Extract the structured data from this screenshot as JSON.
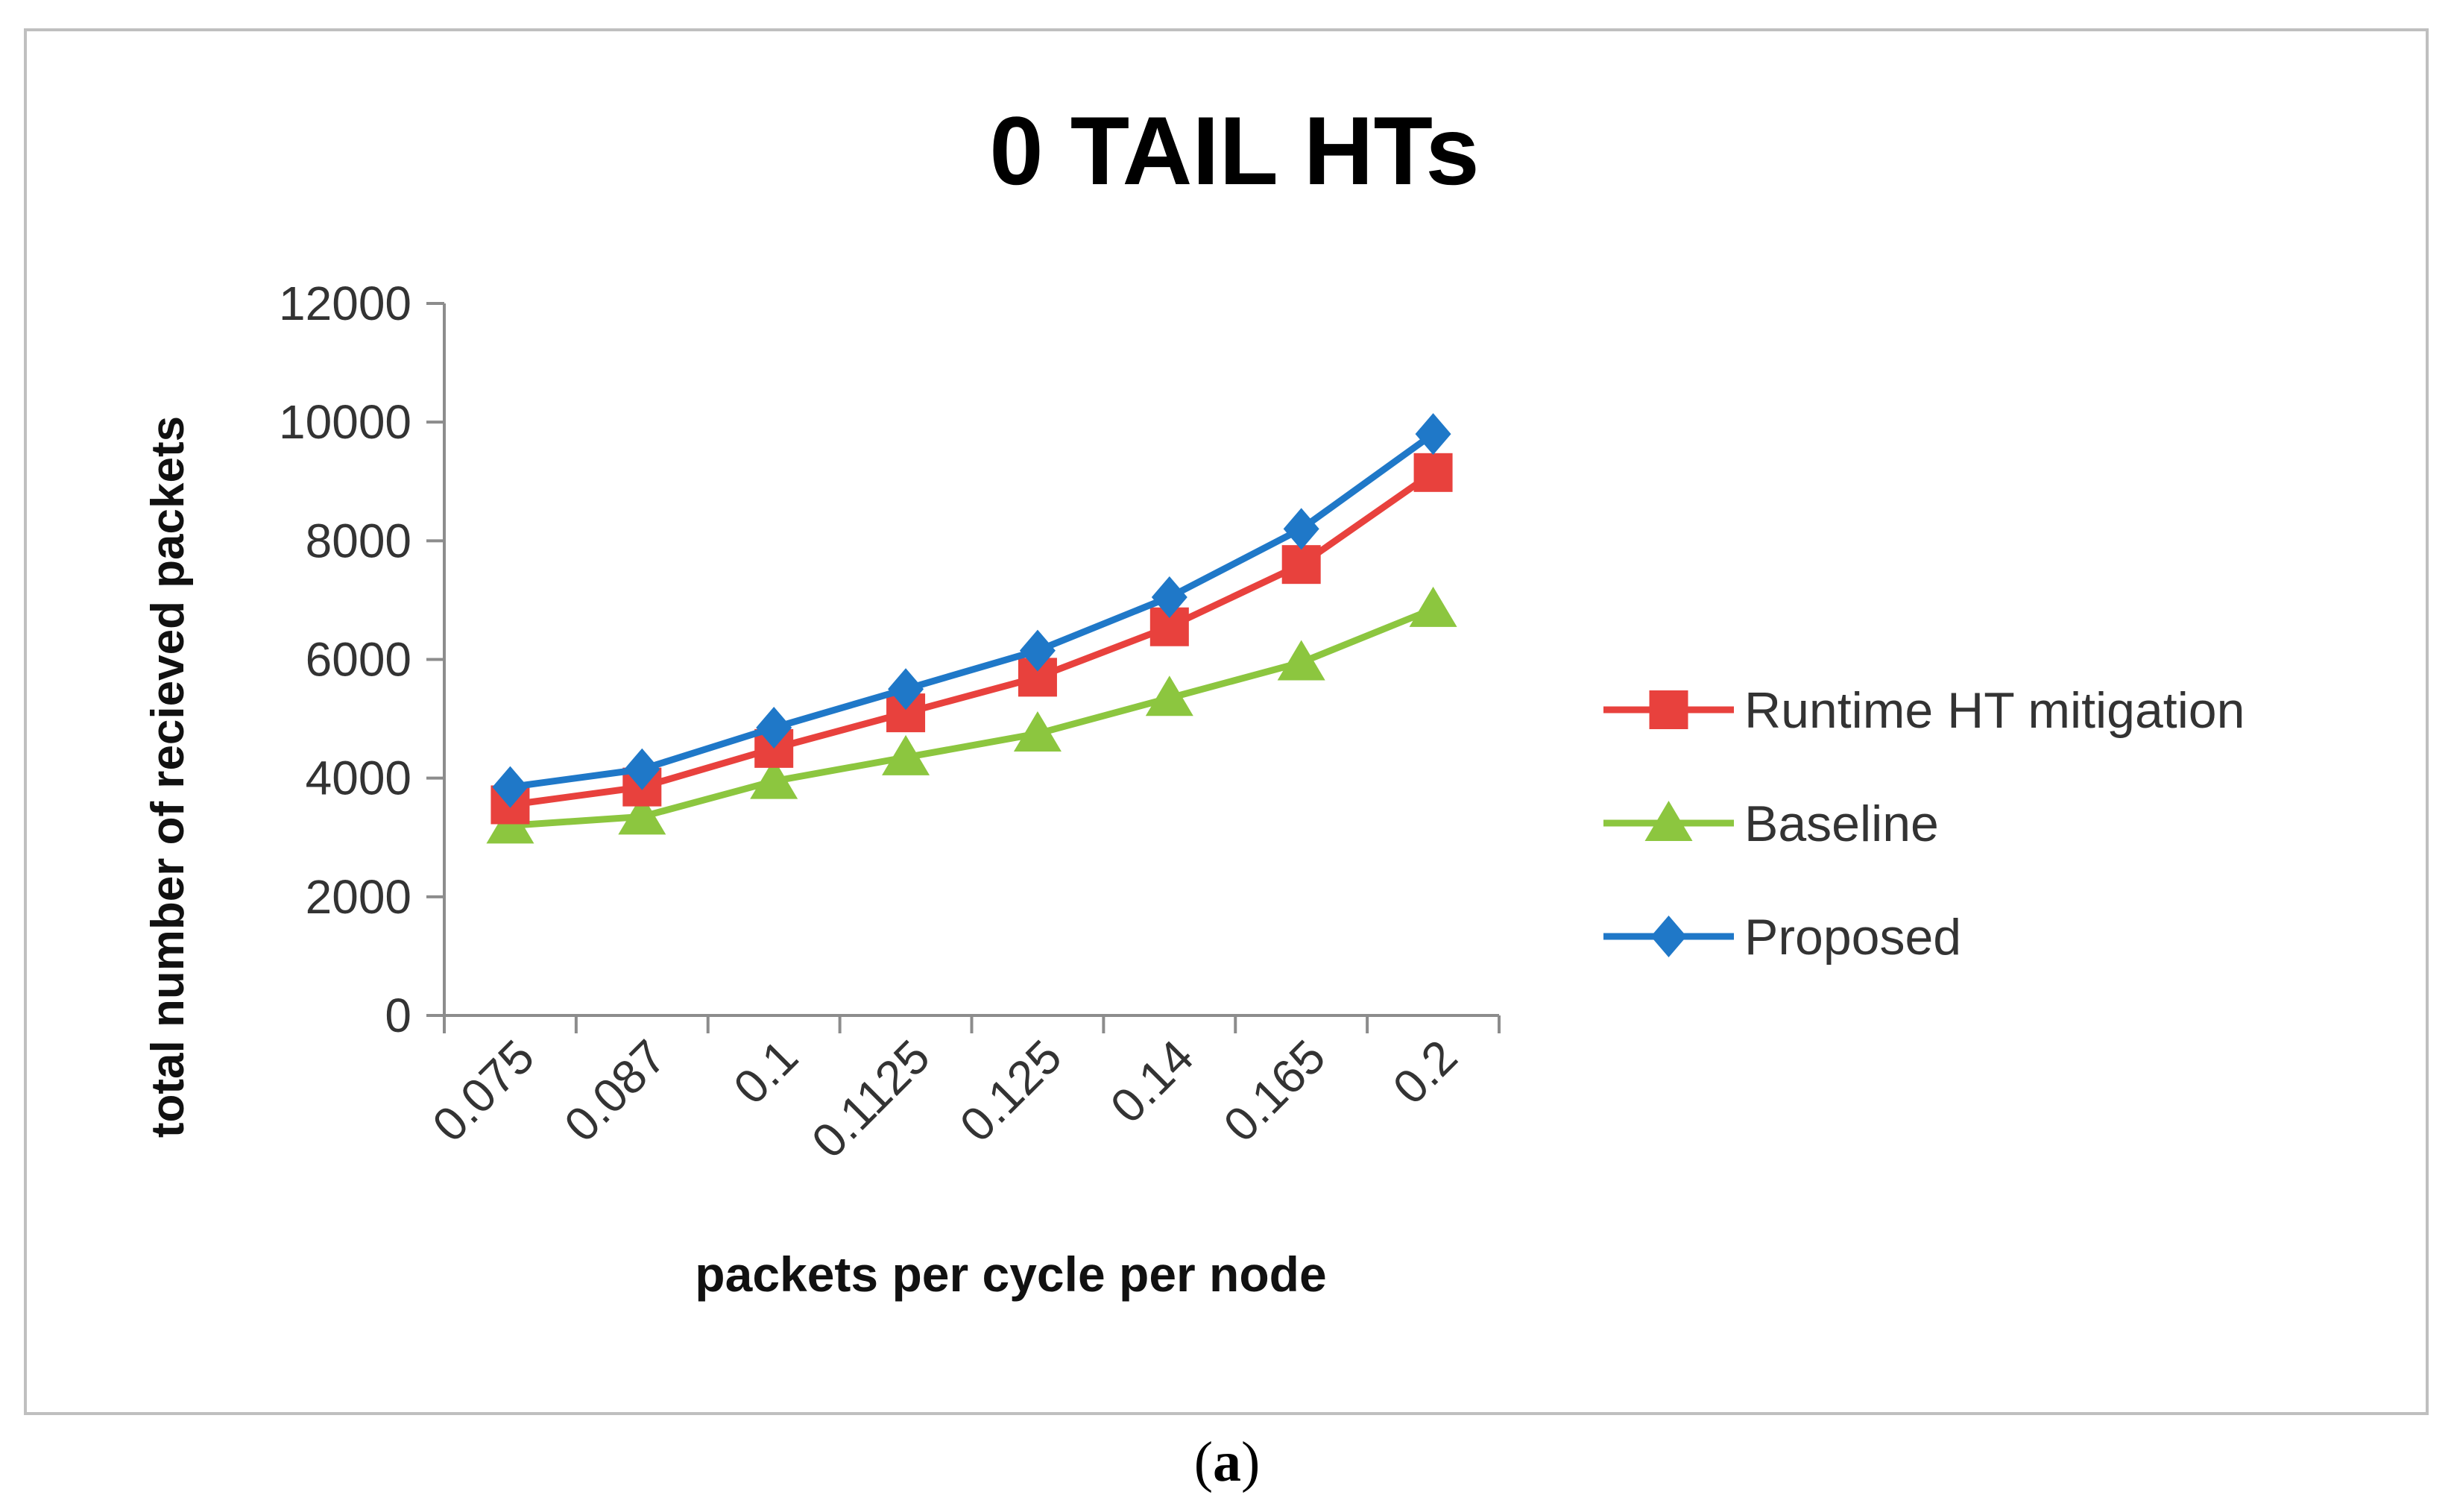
{
  "chart_data": {
    "type": "line",
    "title": "0 TAIL HTs",
    "xlabel": "packets per cycle per node",
    "ylabel": "total number of recieved packets",
    "categories": [
      "0.075",
      "0.087",
      "0.1",
      "0.1125",
      "0.125",
      "0.14",
      "0.165",
      "0.2"
    ],
    "ylim": [
      0,
      12000
    ],
    "yticks": [
      0,
      2000,
      4000,
      6000,
      8000,
      10000,
      12000
    ],
    "ytick_labels": [
      "0",
      "2000",
      "4000",
      "6000",
      "8000",
      "10000",
      "12000"
    ],
    "grid": false,
    "legend_position": "right",
    "series": [
      {
        "name": "Runtime HT mitigation",
        "color": "#e8413d",
        "marker": "square",
        "values": [
          3550,
          3850,
          4500,
          5100,
          5700,
          6550,
          7600,
          9150
        ]
      },
      {
        "name": "Baseline",
        "color": "#8cc63f",
        "marker": "triangle",
        "values": [
          3200,
          3350,
          3950,
          4350,
          4750,
          5350,
          5950,
          6850
        ]
      },
      {
        "name": "Proposed",
        "color": "#1f78c8",
        "marker": "diamond",
        "values": [
          3850,
          4150,
          4850,
          5500,
          6150,
          7050,
          8200,
          9800
        ]
      }
    ]
  },
  "caption": {
    "open": "(",
    "letter": "a",
    "close": ")"
  }
}
